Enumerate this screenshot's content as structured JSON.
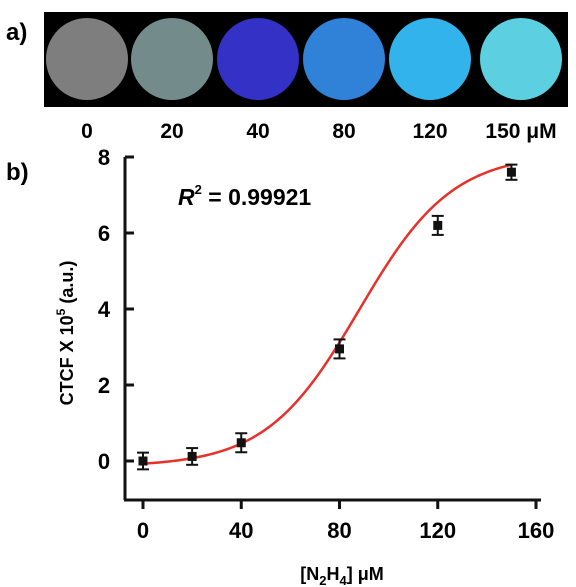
{
  "panel_a": {
    "label": "a)",
    "wells": [
      {
        "concentration": "0",
        "color": "#7e7e7e"
      },
      {
        "concentration": "20",
        "color": "#748b8c"
      },
      {
        "concentration": "40",
        "color": "#3431c6"
      },
      {
        "concentration": "80",
        "color": "#2f82d8"
      },
      {
        "concentration": "120",
        "color": "#33b3ec"
      },
      {
        "concentration": "150 μM",
        "color": "#5ccfe0"
      }
    ]
  },
  "panel_b": {
    "label": "b)",
    "annotation": {
      "symbol": "R",
      "superscript": "2",
      "text": " = 0.99921"
    }
  },
  "chart_data": {
    "type": "scatter",
    "title": "",
    "xlabel": {
      "prefix": "[N",
      "sub1": "2",
      "mid": "H",
      "sub2": "4",
      "suffix": "] μM"
    },
    "ylabel": {
      "prefix": "CTCF X 10",
      "sup": "5",
      "suffix": " (a.u.)"
    },
    "xlim": [
      0,
      160
    ],
    "ylim": [
      -1,
      8
    ],
    "xticks": [
      0,
      40,
      80,
      120,
      160
    ],
    "yticks": [
      0,
      2,
      4,
      6,
      8
    ],
    "series": [
      {
        "x": [
          0,
          20,
          40,
          80,
          120,
          150
        ],
        "y": [
          0.0,
          0.12,
          0.48,
          2.95,
          6.2,
          7.6
        ],
        "yerr": [
          0.22,
          0.22,
          0.25,
          0.25,
          0.25,
          0.2
        ],
        "marker_color": "#111111"
      }
    ],
    "fit": {
      "type": "sigmoid",
      "color": "#e8302a",
      "A1": -0.15,
      "A2": 8.1,
      "x0": 88,
      "dx": 19
    }
  }
}
